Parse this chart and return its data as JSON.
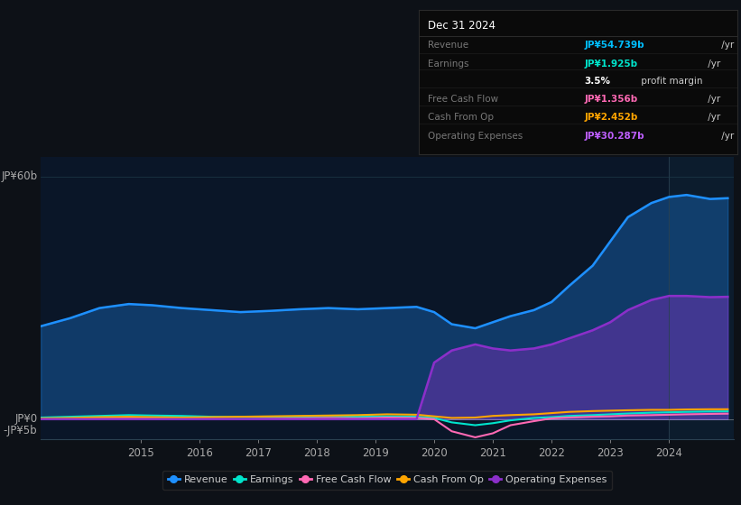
{
  "bg_color": "#0d1117",
  "plot_bg_color": "#0a1628",
  "grid_color": "#1e3a4a",
  "title_box": {
    "date": "Dec 31 2024",
    "rows": [
      {
        "label": "Revenue",
        "value": "JP¥54.739b",
        "color": "#00bfff",
        "suffix": " /yr"
      },
      {
        "label": "Earnings",
        "value": "JP¥1.925b",
        "color": "#00e5cc",
        "suffix": " /yr"
      },
      {
        "label": "",
        "value": "3.5%",
        "color": "#ffffff",
        "suffix": " profit margin",
        "bold_value": true
      },
      {
        "label": "Free Cash Flow",
        "value": "JP¥1.356b",
        "color": "#ff69b4",
        "suffix": " /yr"
      },
      {
        "label": "Cash From Op",
        "value": "JP¥2.452b",
        "color": "#ffa500",
        "suffix": " /yr"
      },
      {
        "label": "Operating Expenses",
        "value": "JP¥30.287b",
        "color": "#bf5fff",
        "suffix": " /yr"
      }
    ]
  },
  "years": [
    2013.3,
    2013.8,
    2014.3,
    2014.8,
    2015.2,
    2015.7,
    2016.2,
    2016.7,
    2017.2,
    2017.7,
    2018.2,
    2018.7,
    2019.2,
    2019.7,
    2020.0,
    2020.3,
    2020.7,
    2021.0,
    2021.3,
    2021.7,
    2022.0,
    2022.3,
    2022.7,
    2023.0,
    2023.3,
    2023.7,
    2024.0,
    2024.3,
    2024.7,
    2025.0
  ],
  "revenue": [
    23,
    25,
    27.5,
    28.5,
    28.2,
    27.5,
    27.0,
    26.5,
    26.8,
    27.2,
    27.5,
    27.2,
    27.5,
    27.8,
    26.5,
    23.5,
    22.5,
    24.0,
    25.5,
    27.0,
    29.0,
    33.0,
    38.0,
    44.0,
    50.0,
    53.5,
    55.0,
    55.5,
    54.5,
    54.7
  ],
  "earnings": [
    0.4,
    0.6,
    0.8,
    1.0,
    0.9,
    0.8,
    0.6,
    0.5,
    0.5,
    0.6,
    0.7,
    0.6,
    0.7,
    0.6,
    0.3,
    -0.8,
    -1.5,
    -1.0,
    -0.3,
    0.3,
    0.5,
    0.8,
    1.0,
    1.2,
    1.4,
    1.6,
    1.7,
    1.8,
    1.9,
    1.925
  ],
  "free_cash_flow": [
    0.1,
    0.2,
    0.3,
    0.4,
    0.3,
    0.2,
    0.1,
    0.0,
    0.1,
    0.2,
    0.3,
    0.2,
    0.4,
    0.3,
    0.0,
    -3.0,
    -4.5,
    -3.5,
    -1.5,
    -0.5,
    0.2,
    0.4,
    0.6,
    0.7,
    0.9,
    1.0,
    1.1,
    1.2,
    1.3,
    1.356
  ],
  "cash_from_op": [
    0.2,
    0.3,
    0.5,
    0.6,
    0.5,
    0.4,
    0.5,
    0.6,
    0.7,
    0.8,
    0.9,
    1.0,
    1.2,
    1.1,
    0.7,
    0.3,
    0.4,
    0.8,
    1.0,
    1.2,
    1.5,
    1.8,
    2.0,
    2.1,
    2.2,
    2.3,
    2.3,
    2.4,
    2.45,
    2.452
  ],
  "op_expenses": [
    0,
    0,
    0,
    0,
    0,
    0,
    0,
    0,
    0,
    0,
    0,
    0,
    0,
    0,
    14.0,
    17.0,
    18.5,
    17.5,
    17.0,
    17.5,
    18.5,
    20.0,
    22.0,
    24.0,
    27.0,
    29.5,
    30.5,
    30.5,
    30.2,
    30.287
  ],
  "colors": {
    "revenue": "#1e90ff",
    "earnings": "#00e5cc",
    "free_cash_flow": "#ff69b4",
    "cash_from_op": "#ffa500",
    "op_expenses": "#8b2fc9"
  },
  "ylim": [
    -5,
    65
  ],
  "xlim": [
    2013.3,
    2025.1
  ],
  "xticks": [
    2015,
    2016,
    2017,
    2018,
    2019,
    2020,
    2021,
    2022,
    2023,
    2024
  ],
  "legend": [
    {
      "label": "Revenue",
      "color": "#1e90ff"
    },
    {
      "label": "Earnings",
      "color": "#00e5cc"
    },
    {
      "label": "Free Cash Flow",
      "color": "#ff69b4"
    },
    {
      "label": "Cash From Op",
      "color": "#ffa500"
    },
    {
      "label": "Operating Expenses",
      "color": "#8b2fc9"
    }
  ]
}
